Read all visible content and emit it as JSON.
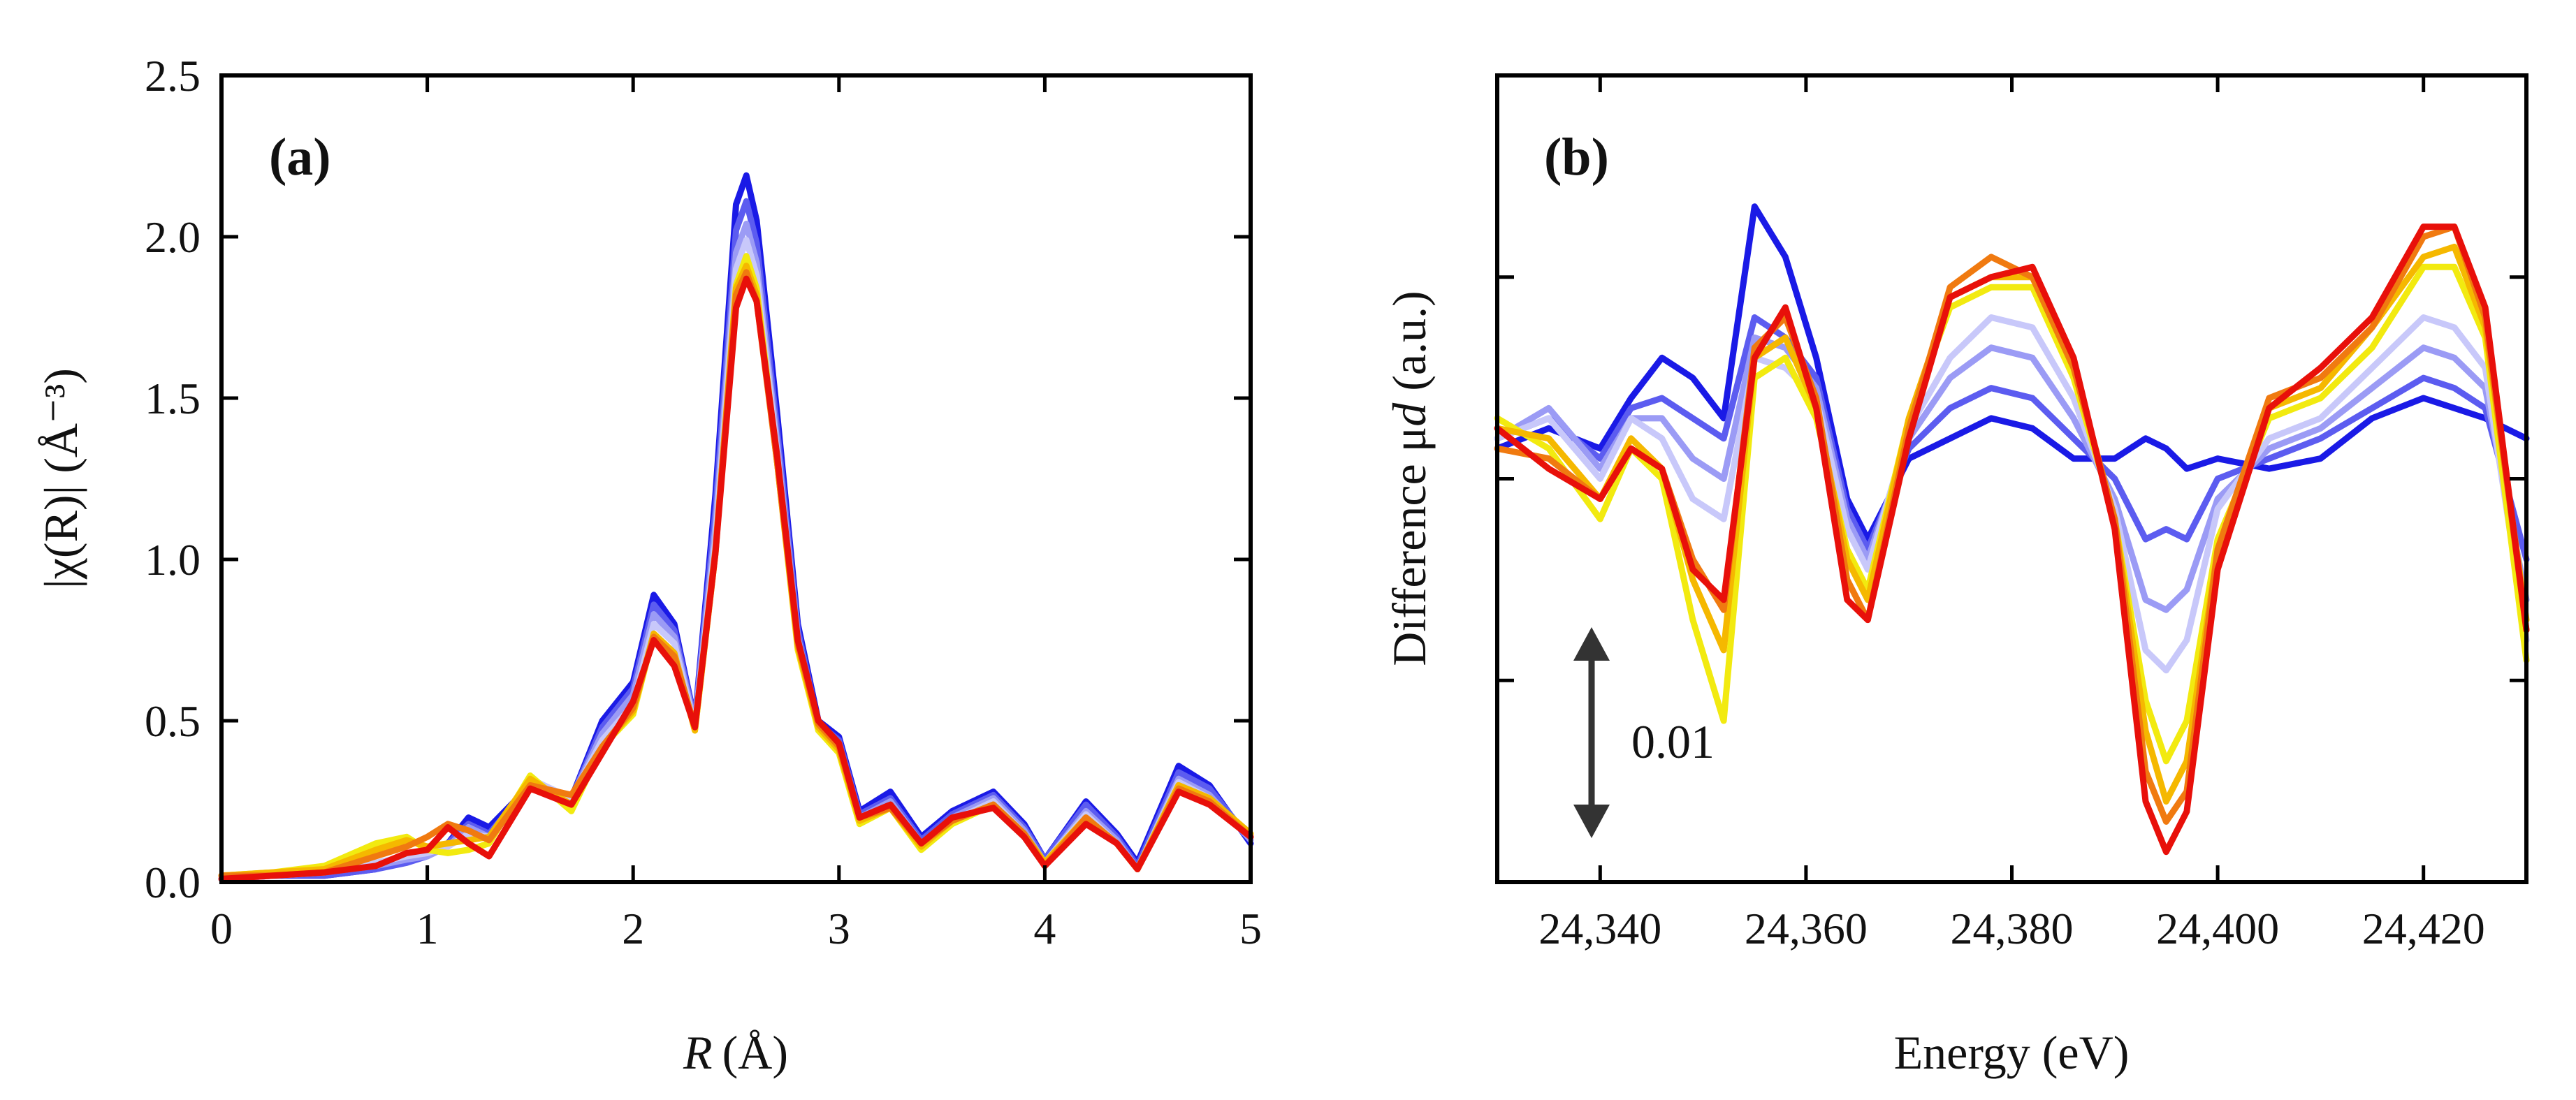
{
  "chart_data": [
    {
      "panel_label": "(a)",
      "type": "line",
      "xlabel": "R",
      "xlabel_unit": "(Å)",
      "ylabel": "|χ(R)| (Å⁻³)",
      "xlim": [
        0,
        5
      ],
      "ylim": [
        0,
        2.5
      ],
      "xticks": [
        0,
        1,
        2,
        3,
        4,
        5
      ],
      "xtick_labels": [
        "0",
        "1",
        "2",
        "3",
        "4",
        "5"
      ],
      "yticks": [
        0,
        0.5,
        1,
        1.5,
        2,
        2.5
      ],
      "ytick_labels": [
        "0.0",
        "0.5",
        "1.0",
        "1.5",
        "2.0",
        "2.5"
      ],
      "x": [
        0,
        0.25,
        0.5,
        0.75,
        0.9,
        1.0,
        1.1,
        1.2,
        1.3,
        1.5,
        1.7,
        1.85,
        2.0,
        2.1,
        2.2,
        2.3,
        2.4,
        2.5,
        2.55,
        2.6,
        2.7,
        2.8,
        2.9,
        3.0,
        3.1,
        3.25,
        3.4,
        3.55,
        3.75,
        3.9,
        4.0,
        4.2,
        4.35,
        4.45,
        4.65,
        4.8,
        5.0
      ],
      "series": [
        {
          "name": "blue",
          "color": "#1a1ae6",
          "values": [
            0.01,
            0.02,
            0.02,
            0.04,
            0.07,
            0.09,
            0.12,
            0.2,
            0.17,
            0.3,
            0.26,
            0.5,
            0.62,
            0.89,
            0.8,
            0.5,
            1.2,
            2.1,
            2.19,
            2.05,
            1.45,
            0.8,
            0.5,
            0.45,
            0.22,
            0.28,
            0.14,
            0.22,
            0.28,
            0.18,
            0.07,
            0.25,
            0.15,
            0.06,
            0.36,
            0.3,
            0.12
          ]
        },
        {
          "name": "medium blue",
          "color": "#5c5cf0",
          "values": [
            0.01,
            0.02,
            0.02,
            0.04,
            0.06,
            0.08,
            0.12,
            0.18,
            0.15,
            0.3,
            0.26,
            0.48,
            0.6,
            0.86,
            0.78,
            0.5,
            1.15,
            2.02,
            2.11,
            1.98,
            1.4,
            0.78,
            0.49,
            0.44,
            0.21,
            0.26,
            0.13,
            0.21,
            0.27,
            0.17,
            0.07,
            0.24,
            0.14,
            0.05,
            0.34,
            0.29,
            0.13
          ]
        },
        {
          "name": "light blue",
          "color": "#9b9bf5",
          "values": [
            0.01,
            0.02,
            0.03,
            0.05,
            0.07,
            0.08,
            0.11,
            0.17,
            0.14,
            0.31,
            0.26,
            0.46,
            0.58,
            0.83,
            0.76,
            0.49,
            1.1,
            1.95,
            2.04,
            1.92,
            1.36,
            0.76,
            0.48,
            0.43,
            0.2,
            0.25,
            0.12,
            0.2,
            0.26,
            0.16,
            0.06,
            0.22,
            0.13,
            0.04,
            0.32,
            0.27,
            0.13
          ]
        },
        {
          "name": "pale blue",
          "color": "#c8c8fa",
          "values": [
            0.01,
            0.02,
            0.03,
            0.06,
            0.08,
            0.09,
            0.11,
            0.15,
            0.14,
            0.32,
            0.26,
            0.44,
            0.55,
            0.8,
            0.74,
            0.48,
            1.06,
            1.9,
            1.99,
            1.88,
            1.33,
            0.74,
            0.47,
            0.42,
            0.19,
            0.24,
            0.11,
            0.19,
            0.25,
            0.15,
            0.06,
            0.21,
            0.12,
            0.04,
            0.31,
            0.26,
            0.14
          ]
        },
        {
          "name": "yellow",
          "color": "#f2ea10",
          "values": [
            0.02,
            0.03,
            0.05,
            0.12,
            0.14,
            0.1,
            0.09,
            0.1,
            0.12,
            0.33,
            0.22,
            0.42,
            0.52,
            0.77,
            0.71,
            0.47,
            1.02,
            1.85,
            1.94,
            1.84,
            1.3,
            0.72,
            0.47,
            0.4,
            0.18,
            0.23,
            0.1,
            0.18,
            0.24,
            0.15,
            0.06,
            0.2,
            0.12,
            0.04,
            0.3,
            0.26,
            0.15
          ]
        },
        {
          "name": "gold",
          "color": "#f5b800",
          "values": [
            0.02,
            0.03,
            0.04,
            0.1,
            0.13,
            0.11,
            0.12,
            0.13,
            0.14,
            0.32,
            0.24,
            0.42,
            0.53,
            0.77,
            0.71,
            0.47,
            1.02,
            1.84,
            1.91,
            1.82,
            1.3,
            0.73,
            0.48,
            0.41,
            0.19,
            0.23,
            0.11,
            0.19,
            0.24,
            0.15,
            0.06,
            0.2,
            0.12,
            0.04,
            0.3,
            0.26,
            0.15
          ]
        },
        {
          "name": "orange",
          "color": "#f07a10",
          "values": [
            0.02,
            0.02,
            0.03,
            0.08,
            0.11,
            0.14,
            0.18,
            0.16,
            0.13,
            0.3,
            0.27,
            0.42,
            0.54,
            0.76,
            0.7,
            0.48,
            1.03,
            1.82,
            1.89,
            1.8,
            1.3,
            0.74,
            0.49,
            0.42,
            0.2,
            0.23,
            0.12,
            0.19,
            0.24,
            0.15,
            0.05,
            0.2,
            0.12,
            0.04,
            0.29,
            0.25,
            0.14
          ]
        },
        {
          "name": "red",
          "color": "#e8100a",
          "values": [
            0.01,
            0.02,
            0.03,
            0.05,
            0.09,
            0.1,
            0.17,
            0.12,
            0.08,
            0.29,
            0.24,
            0.4,
            0.56,
            0.75,
            0.67,
            0.48,
            1.02,
            1.78,
            1.87,
            1.8,
            1.32,
            0.75,
            0.5,
            0.43,
            0.2,
            0.24,
            0.12,
            0.2,
            0.23,
            0.14,
            0.05,
            0.18,
            0.12,
            0.04,
            0.28,
            0.24,
            0.14
          ]
        }
      ]
    },
    {
      "panel_label": "(b)",
      "type": "line",
      "xlabel": "Energy (eV)",
      "ylabel_prefix": "Difference μ",
      "ylabel_italic": "d",
      "ylabel_suffix": " (a.u.)",
      "xlim": [
        24330,
        24430
      ],
      "ylim": [
        -0.02,
        0.02
      ],
      "xticks": [
        24340,
        24360,
        24380,
        24400,
        24420
      ],
      "xtick_labels": [
        "24,340",
        "24,360",
        "24,380",
        "24,400",
        "24,420"
      ],
      "yticks": [
        -0.02,
        -0.01,
        0,
        0.01,
        0.02
      ],
      "scale_bar_label": "0.01",
      "scale_bar_value": 0.01,
      "x": [
        24330,
        24335,
        24340,
        24343,
        24346,
        24349,
        24352,
        24355,
        24358,
        24361,
        24364,
        24366,
        24370,
        24374,
        24378,
        24382,
        24386,
        24390,
        24393,
        24395,
        24397,
        24400,
        24405,
        24410,
        24415,
        24420,
        24423,
        24426,
        24430
      ],
      "series": [
        {
          "name": "blue",
          "color": "#1a1ae6",
          "values": [
            0.0015,
            0.0025,
            0.0015,
            0.004,
            0.006,
            0.005,
            0.003,
            0.0135,
            0.011,
            0.006,
            -0.001,
            -0.003,
            0.001,
            0.002,
            0.003,
            0.0025,
            0.001,
            0.001,
            0.002,
            0.0015,
            0.0005,
            0.001,
            0.0005,
            0.001,
            0.003,
            0.004,
            0.0035,
            0.003,
            0.002
          ]
        },
        {
          "name": "medium blue",
          "color": "#5c5cf0",
          "values": [
            0.002,
            0.003,
            0.001,
            0.0035,
            0.004,
            0.003,
            0.002,
            0.008,
            0.007,
            0.005,
            -0.0015,
            -0.0035,
            0.0015,
            0.0035,
            0.0045,
            0.004,
            0.002,
            0.0,
            -0.003,
            -0.0025,
            -0.003,
            0.0,
            0.001,
            0.002,
            0.0035,
            0.005,
            0.0045,
            0.0035,
            -0.004
          ]
        },
        {
          "name": "light blue",
          "color": "#9b9bf5",
          "values": [
            0.002,
            0.0035,
            0.0005,
            0.003,
            0.003,
            0.001,
            0.0,
            0.007,
            0.0065,
            0.0045,
            -0.002,
            -0.004,
            0.002,
            0.005,
            0.0065,
            0.006,
            0.003,
            -0.001,
            -0.006,
            -0.0065,
            -0.0055,
            -0.001,
            0.0015,
            0.0025,
            0.0045,
            0.0065,
            0.006,
            0.0045,
            -0.006
          ]
        },
        {
          "name": "pale blue",
          "color": "#c8c8fa",
          "values": [
            0.002,
            0.003,
            0.0,
            0.003,
            0.002,
            -0.001,
            -0.002,
            0.006,
            0.0055,
            0.004,
            -0.0025,
            -0.0045,
            0.0025,
            0.006,
            0.008,
            0.0075,
            0.004,
            -0.0015,
            -0.0085,
            -0.0095,
            -0.008,
            -0.0015,
            0.002,
            0.003,
            0.0055,
            0.008,
            0.0075,
            0.0055,
            -0.008
          ]
        },
        {
          "name": "yellow",
          "color": "#f2ea10",
          "values": [
            0.003,
            0.0015,
            -0.002,
            0.0015,
            0.0,
            -0.007,
            -0.012,
            0.005,
            0.006,
            0.003,
            -0.0035,
            -0.0055,
            0.003,
            0.0085,
            0.0095,
            0.0095,
            0.005,
            -0.002,
            -0.011,
            -0.014,
            -0.012,
            -0.003,
            0.003,
            0.004,
            0.0065,
            0.0105,
            0.0105,
            0.007,
            -0.009
          ]
        },
        {
          "name": "gold",
          "color": "#f5b800",
          "values": [
            0.0025,
            0.002,
            -0.001,
            0.002,
            0.0005,
            -0.005,
            -0.0085,
            0.006,
            0.007,
            0.0035,
            -0.004,
            -0.006,
            0.003,
            0.009,
            0.01,
            0.01,
            0.0055,
            -0.002,
            -0.0125,
            -0.016,
            -0.014,
            -0.0035,
            0.0035,
            0.0045,
            0.0075,
            0.011,
            0.0115,
            0.0075,
            -0.007
          ]
        },
        {
          "name": "orange",
          "color": "#f07a10",
          "values": [
            0.0015,
            0.001,
            -0.001,
            0.0015,
            0.0005,
            -0.004,
            -0.0065,
            0.0065,
            0.008,
            0.004,
            -0.005,
            -0.007,
            0.0025,
            0.0095,
            0.011,
            0.01,
            0.0055,
            -0.002,
            -0.0145,
            -0.017,
            -0.0155,
            -0.0035,
            0.004,
            0.005,
            0.0075,
            0.012,
            0.0125,
            0.008,
            -0.0075
          ]
        },
        {
          "name": "red",
          "color": "#e8100a",
          "values": [
            0.0025,
            0.0005,
            -0.001,
            0.0015,
            0.0005,
            -0.0045,
            -0.006,
            0.006,
            0.0085,
            0.0035,
            -0.006,
            -0.007,
            0.002,
            0.009,
            0.01,
            0.0105,
            0.006,
            -0.0025,
            -0.016,
            -0.0185,
            -0.0165,
            -0.0045,
            0.0035,
            0.0055,
            0.008,
            0.0125,
            0.0125,
            0.0085,
            -0.0075
          ]
        }
      ]
    }
  ]
}
